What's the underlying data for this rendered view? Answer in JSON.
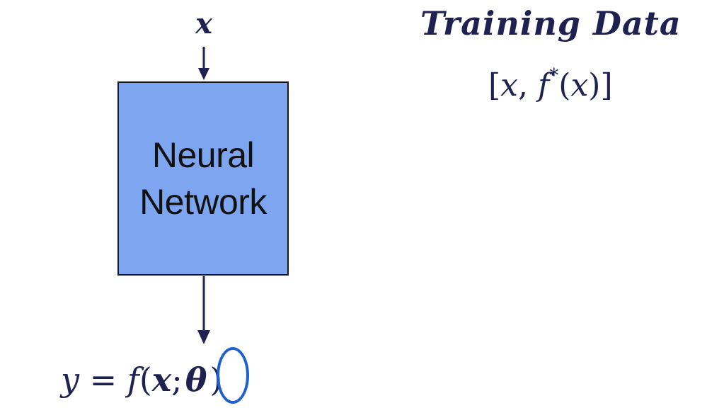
{
  "input": {
    "label": "x"
  },
  "network": {
    "line1": "Neural",
    "line2": "Network",
    "fill_color": "#7ea6f0",
    "border_color": "#1a1a1a"
  },
  "output": {
    "y": "y",
    "equals": " = ",
    "f": "f",
    "open_paren": "(",
    "x": "x",
    "semicolon": ";",
    "theta": "θ",
    "close_paren": ")",
    "highlight_color": "#1f5fcf"
  },
  "training": {
    "title": "Training Data",
    "open_bracket": "[",
    "x": "x",
    "comma": ", ",
    "f": "f",
    "star": "*",
    "open_paren": "(",
    "x2": "x",
    "close_paren": ")",
    "close_bracket": "]"
  },
  "colors": {
    "text": "#1f2250",
    "arrow": "#1f2250"
  }
}
